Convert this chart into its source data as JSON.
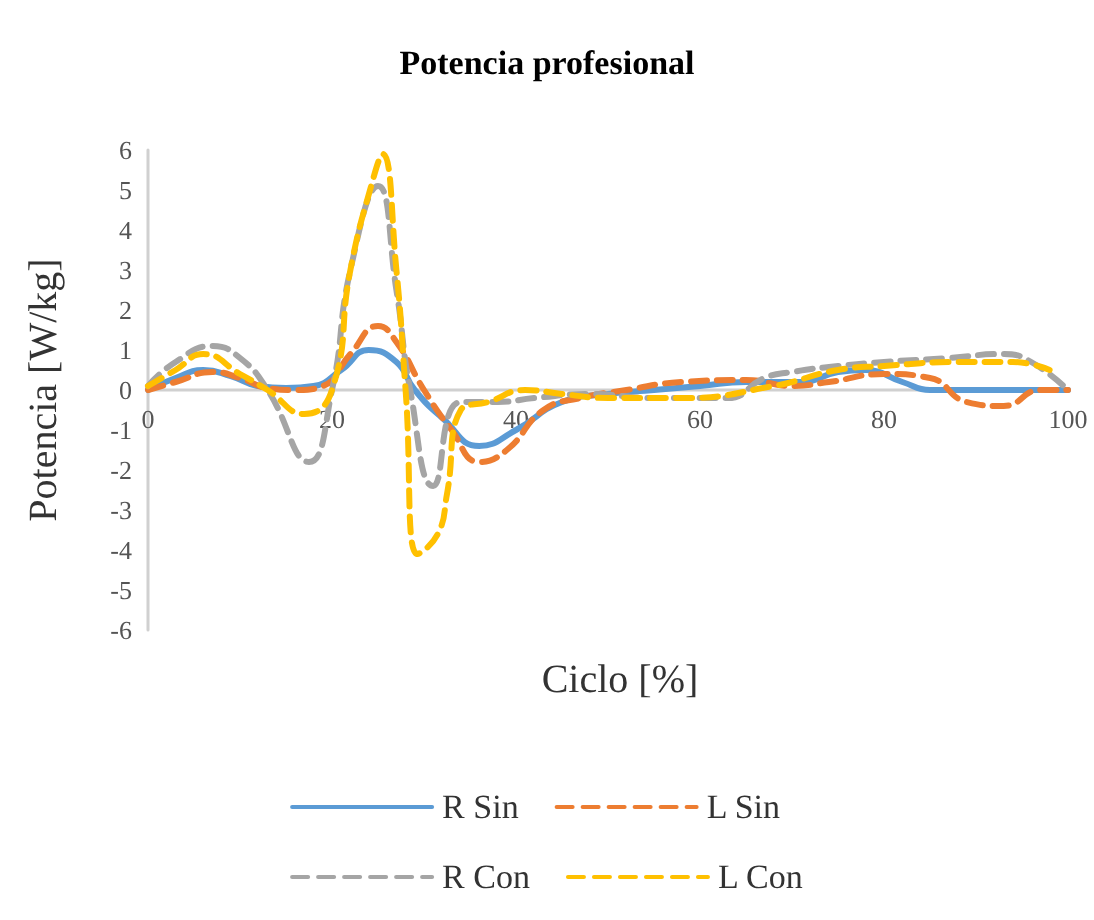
{
  "chart_data": {
    "type": "line",
    "title": "Potencia profesional",
    "xlabel": "Ciclo [%]",
    "ylabel": "Potencia [W/kg]",
    "xlim": [
      0,
      100
    ],
    "xticks": [
      0,
      20,
      40,
      60,
      80,
      100
    ],
    "ylim": [
      -6,
      6
    ],
    "yticks": [
      -6,
      -5,
      -4,
      -3,
      -2,
      -1,
      0,
      1,
      2,
      3,
      4,
      5,
      6
    ],
    "legend": "bottom",
    "marker": "none",
    "series": [
      {
        "name": "R Sin",
        "color": "#5b9bd5",
        "line_style": "solid",
        "x": [
          0,
          3,
          6,
          9,
          12,
          15,
          18,
          21,
          24,
          27,
          29,
          32,
          36,
          40,
          45,
          50,
          55,
          60,
          65,
          71,
          75,
          78,
          82,
          85,
          90,
          95,
          100
        ],
        "values": [
          0,
          0.3,
          0.5,
          0.35,
          0.1,
          0.05,
          0.1,
          0.5,
          1.0,
          0.7,
          0,
          -0.7,
          -1.4,
          -1.0,
          -0.3,
          -0.1,
          0,
          0.1,
          0.2,
          0.2,
          0.45,
          0.5,
          0.2,
          0,
          0,
          0,
          0
        ]
      },
      {
        "name": "L Sin",
        "color": "#ed7d31",
        "line_style": "dashed",
        "x": [
          0,
          3,
          7,
          10,
          13,
          16,
          19,
          22,
          25,
          27,
          30,
          33,
          36,
          39,
          43,
          47,
          52,
          58,
          65,
          70,
          74,
          80,
          85,
          89,
          93,
          97,
          100
        ],
        "values": [
          0,
          0.2,
          0.45,
          0.3,
          0.05,
          0,
          0.1,
          0.9,
          1.6,
          1.2,
          0,
          -1.0,
          -1.8,
          -1.5,
          -0.5,
          -0.2,
          0,
          0.2,
          0.25,
          0.1,
          0.2,
          0.4,
          0.3,
          -0.3,
          -0.4,
          0,
          0
        ]
      },
      {
        "name": "R Con",
        "color": "#a5a5a5",
        "line_style": "dashed",
        "x": [
          0,
          3,
          7,
          10,
          13,
          17.5,
          20,
          22,
          25,
          27,
          28.5,
          31,
          34,
          38,
          42,
          48,
          55,
          63,
          67,
          70,
          75,
          80,
          87,
          93,
          96,
          100
        ],
        "values": [
          0.1,
          0.7,
          1.1,
          0.8,
          0,
          -1.8,
          0,
          3.0,
          5.1,
          2.5,
          0,
          -2.4,
          -0.3,
          -0.3,
          -0.2,
          -0.1,
          -0.2,
          -0.2,
          0.3,
          0.45,
          0.6,
          0.7,
          0.8,
          0.9,
          0.7,
          0
        ]
      },
      {
        "name": "L Con",
        "color": "#ffc000",
        "line_style": "dashed",
        "x": [
          0,
          3,
          6,
          10,
          13,
          17,
          20,
          22,
          24.5,
          25.5,
          27,
          28,
          29.3,
          31.5,
          32.5,
          34,
          37,
          41,
          45,
          50,
          58,
          68,
          75,
          80,
          88,
          94,
          98
        ],
        "values": [
          0.1,
          0.5,
          0.9,
          0.4,
          0,
          -0.6,
          0,
          3.0,
          5.3,
          5.9,
          3.0,
          0,
          -4.1,
          -3.6,
          -2.6,
          -0.5,
          -0.3,
          0,
          -0.1,
          -0.2,
          -0.2,
          0.1,
          0.5,
          0.6,
          0.7,
          0.7,
          0.5
        ]
      }
    ]
  }
}
